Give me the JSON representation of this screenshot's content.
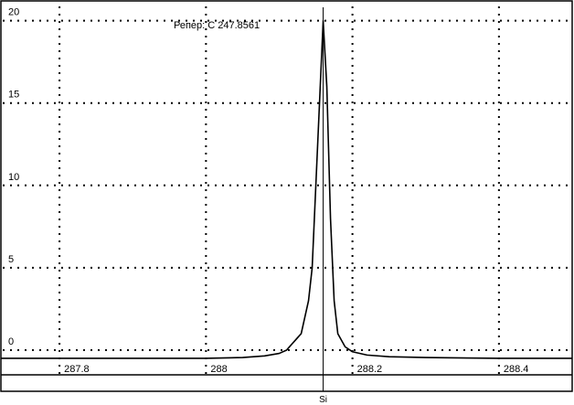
{
  "chart_data": {
    "type": "line",
    "title": "",
    "xlabel": "",
    "ylabel": "",
    "xlim": [
      287.72,
      288.5
    ],
    "ylim": [
      -1.5,
      21.2
    ],
    "grid": true,
    "x_ticks": [
      287.8,
      288,
      288.2,
      288.4
    ],
    "x_tick_labels": [
      "287.8",
      "288",
      "288.2",
      "288.4"
    ],
    "y_ticks": [
      0,
      5,
      10,
      15,
      20
    ],
    "y_tick_labels": [
      "0",
      "5",
      "10",
      "15",
      "20"
    ],
    "annotation": "Репер: С 247.8561",
    "marker": {
      "x": 288.16,
      "label": "Si"
    },
    "series": [
      {
        "x": [
          287.72,
          287.8,
          287.9,
          288.0,
          288.05,
          288.08,
          288.1,
          288.11,
          288.12,
          288.13,
          288.14,
          288.145,
          288.15,
          288.155,
          288.16,
          288.165,
          288.17,
          288.175,
          288.18,
          288.19,
          288.2,
          288.22,
          288.25,
          288.3,
          288.4,
          288.5
        ],
        "y": [
          -0.5,
          -0.5,
          -0.5,
          -0.5,
          -0.45,
          -0.35,
          -0.2,
          0.0,
          0.5,
          1.0,
          3.0,
          5.0,
          10.0,
          15.0,
          20.0,
          16.0,
          8.0,
          3.0,
          1.0,
          0.2,
          -0.1,
          -0.3,
          -0.4,
          -0.45,
          -0.5,
          -0.5
        ]
      }
    ]
  }
}
